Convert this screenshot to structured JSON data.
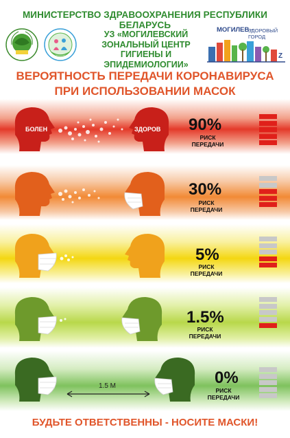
{
  "header": {
    "ministry": "МИНИСТЕРСТВО ЗДРАВООХРАНЕНИЯ РЕСПУБЛИКИ БЕЛАРУСЬ",
    "center_line1": "УЗ «МОГИЛЕВСКИЙ",
    "center_line2": "ЗОНАЛЬНЫЙ ЦЕНТР",
    "center_line3": "ГИГИЕНЫ И ЭПИДЕМИОЛОГИИ»",
    "city_name": "МОГИЛЕВ -",
    "city_slogan": "ЗДОРОВЫЙ ГОРОД"
  },
  "headline": {
    "line1": "ВЕРОЯТНОСТЬ ПЕРЕДАЧИ КОРОНАВИРУСА",
    "line2": "ПРИ ИСПОЛЬЗОВАНИИ МАСОК"
  },
  "labels": {
    "sick": "БОЛЕН",
    "healthy": "ЗДОРОВ",
    "distance": "1.5 М"
  },
  "rows": [
    {
      "percent": "90%",
      "risk_line1": "РИСК",
      "risk_line2": "ПЕРЕДАЧИ",
      "filled_bars": 5,
      "color": "#c8201a"
    },
    {
      "percent": "30%",
      "risk_line1": "РИСК",
      "risk_line2": "ПЕРЕДАЧИ",
      "filled_bars": 3,
      "color": "#e2601c"
    },
    {
      "percent": "5%",
      "risk_line1": "РИСК",
      "risk_line2": "ПЕРЕДАЧИ",
      "filled_bars": 2,
      "color": "#f0a21c"
    },
    {
      "percent": "1.5%",
      "risk_line1": "РИСК",
      "risk_line2": "ПЕРЕДАЧИ",
      "filled_bars": 1,
      "color": "#6e9a2c"
    },
    {
      "percent": "0%",
      "risk_line1": "РИСК",
      "risk_line2": "ПЕРЕДАЧИ",
      "filled_bars": 0,
      "color": "#3a6a22"
    }
  ],
  "footer": "БУДЬТЕ ОТВЕТСТВЕННЫ - НОСИТЕ МАСКИ!",
  "colors": {
    "meter_filled": "#e0201a",
    "meter_empty": "#c8c8c8",
    "headline": "#e0552a",
    "ministry": "#2e8b2e"
  }
}
